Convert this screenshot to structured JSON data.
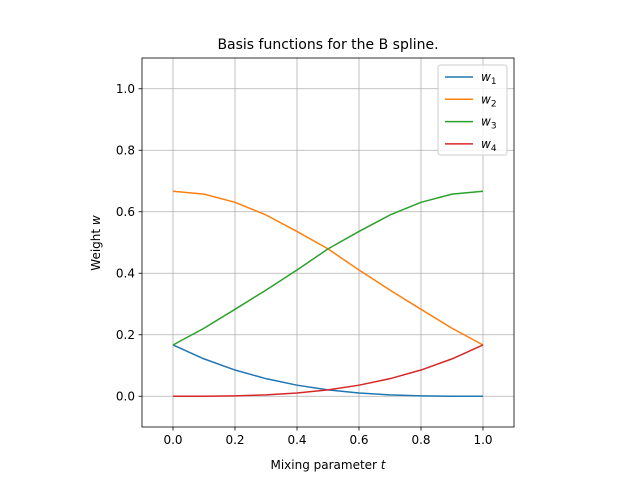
{
  "chart_data": {
    "type": "line",
    "title": "Basis functions for the B spline.",
    "xlabel_text": "Mixing parameter ",
    "xlabel_var": "t",
    "ylabel_text": "Weight ",
    "ylabel_var": "w",
    "xlim": [
      -0.1,
      1.1
    ],
    "ylim": [
      -0.1,
      1.1
    ],
    "xticks": [
      0.0,
      0.2,
      0.4,
      0.6,
      0.8,
      1.0
    ],
    "yticks": [
      0.0,
      0.2,
      0.4,
      0.6,
      0.8,
      1.0
    ],
    "xtick_labels": [
      "0.0",
      "0.2",
      "0.4",
      "0.6",
      "0.8",
      "1.0"
    ],
    "ytick_labels": [
      "0.0",
      "0.2",
      "0.4",
      "0.6",
      "0.8",
      "1.0"
    ],
    "grid": true,
    "legend_position": "top-right",
    "x": [
      0.0,
      0.1,
      0.2,
      0.3,
      0.4,
      0.5,
      0.6,
      0.7,
      0.8,
      0.9,
      1.0
    ],
    "series": [
      {
        "name": "w",
        "subscript": "1",
        "color": "#1f77b4",
        "values": [
          0.1667,
          0.1215,
          0.0853,
          0.0572,
          0.036,
          0.0208,
          0.0107,
          0.0045,
          0.0013,
          0.0002,
          0.0
        ]
      },
      {
        "name": "w",
        "subscript": "2",
        "color": "#ff7f0e",
        "values": [
          0.6667,
          0.6572,
          0.6307,
          0.5895,
          0.536,
          0.4792,
          0.4107,
          0.3452,
          0.2827,
          0.2212,
          0.1667
        ]
      },
      {
        "name": "w",
        "subscript": "3",
        "color": "#2ca02c",
        "values": [
          0.1667,
          0.2212,
          0.2827,
          0.3452,
          0.4107,
          0.4792,
          0.536,
          0.5895,
          0.6307,
          0.6572,
          0.6667
        ]
      },
      {
        "name": "w",
        "subscript": "4",
        "color": "#d62728",
        "values": [
          0.0,
          0.0002,
          0.0013,
          0.0045,
          0.0107,
          0.0208,
          0.036,
          0.0572,
          0.0853,
          0.1215,
          0.1667
        ]
      }
    ]
  }
}
